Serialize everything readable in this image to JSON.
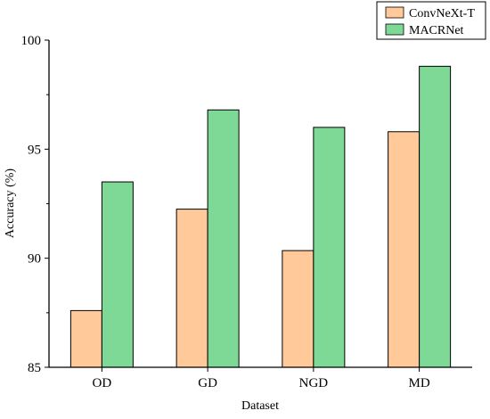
{
  "chart_data": {
    "type": "bar",
    "title": "",
    "xlabel": "Dataset",
    "ylabel": "Accuracy (%)",
    "categories": [
      "OD",
      "GD",
      "NGD",
      "MD"
    ],
    "ylim": [
      85,
      100
    ],
    "yticks": [
      "85",
      "90",
      "95",
      "100"
    ],
    "series": [
      {
        "name": "ConvNeXt-T",
        "color": "#FFC999",
        "values": [
          87.6,
          92.25,
          90.35,
          95.8
        ]
      },
      {
        "name": "MACRNet",
        "color": "#7ED896",
        "values": [
          93.5,
          96.8,
          96.0,
          98.8
        ]
      }
    ],
    "grid": false,
    "legend": "top-right"
  }
}
